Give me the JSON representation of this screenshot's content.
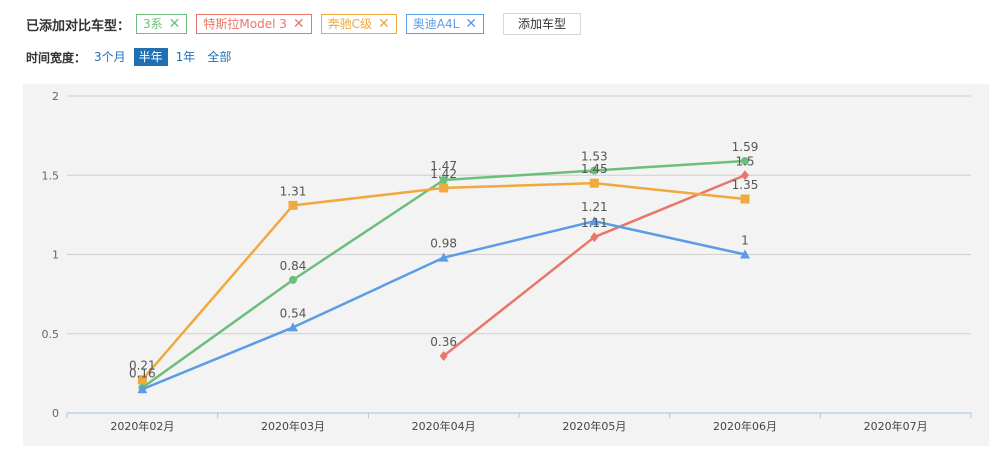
{
  "compare": {
    "label": "已添加对比车型：",
    "add_button": "添加车型",
    "models": [
      {
        "name": "3系",
        "color": "#6cbf7b"
      },
      {
        "name": "特斯拉Model 3",
        "color": "#e8776a"
      },
      {
        "name": "奔驰C级",
        "color": "#f0a93c"
      },
      {
        "name": "奥迪A4L",
        "color": "#5b9ce6"
      }
    ],
    "close_icon": "close-icon"
  },
  "time_range": {
    "label": "时间宽度：",
    "options": [
      "3个月",
      "半年",
      "1年",
      "全部"
    ],
    "selected": "半年"
  },
  "chart_data": {
    "type": "line",
    "categories": [
      "2020年02月",
      "2020年03月",
      "2020年04月",
      "2020年05月",
      "2020年06月",
      "2020年07月"
    ],
    "ylim": [
      0,
      2
    ],
    "yticks": [
      "0",
      "0.5",
      "1",
      "1.5",
      "2"
    ],
    "grid": true,
    "series": [
      {
        "name": "3系",
        "color": "#6cbf7b",
        "marker": "circle",
        "values": [
          0.16,
          0.84,
          1.47,
          1.53,
          1.59,
          null
        ]
      },
      {
        "name": "特斯拉Model 3",
        "color": "#e8776a",
        "marker": "diamond",
        "values": [
          null,
          null,
          0.36,
          1.11,
          1.5,
          null
        ]
      },
      {
        "name": "奔驰C级",
        "color": "#f0a93c",
        "marker": "square",
        "values": [
          0.21,
          1.31,
          1.42,
          1.45,
          1.35,
          null
        ]
      },
      {
        "name": "奥迪A4L",
        "color": "#5b9ce6",
        "marker": "triangle",
        "values": [
          0.15,
          0.54,
          0.98,
          1.21,
          1,
          null
        ]
      }
    ],
    "data_labels": [
      {
        "series": 0,
        "index": 0,
        "text": "0.16"
      },
      {
        "series": 0,
        "index": 1,
        "text": "0.84"
      },
      {
        "series": 0,
        "index": 2,
        "text": "1.47"
      },
      {
        "series": 0,
        "index": 3,
        "text": "1.53"
      },
      {
        "series": 0,
        "index": 4,
        "text": "1.59"
      },
      {
        "series": 1,
        "index": 2,
        "text": "0.36"
      },
      {
        "series": 1,
        "index": 3,
        "text": "1.11"
      },
      {
        "series": 1,
        "index": 4,
        "text": "1.5"
      },
      {
        "series": 2,
        "index": 0,
        "text": "0.21"
      },
      {
        "series": 2,
        "index": 1,
        "text": "1.31"
      },
      {
        "series": 2,
        "index": 2,
        "text": "1.42"
      },
      {
        "series": 2,
        "index": 3,
        "text": "1.45"
      },
      {
        "series": 2,
        "index": 4,
        "text": "1.35"
      },
      {
        "series": 3,
        "index": 1,
        "text": "0.54"
      },
      {
        "series": 3,
        "index": 2,
        "text": "0.98"
      },
      {
        "series": 3,
        "index": 3,
        "text": "1.21"
      },
      {
        "series": 3,
        "index": 4,
        "text": "1"
      }
    ]
  }
}
